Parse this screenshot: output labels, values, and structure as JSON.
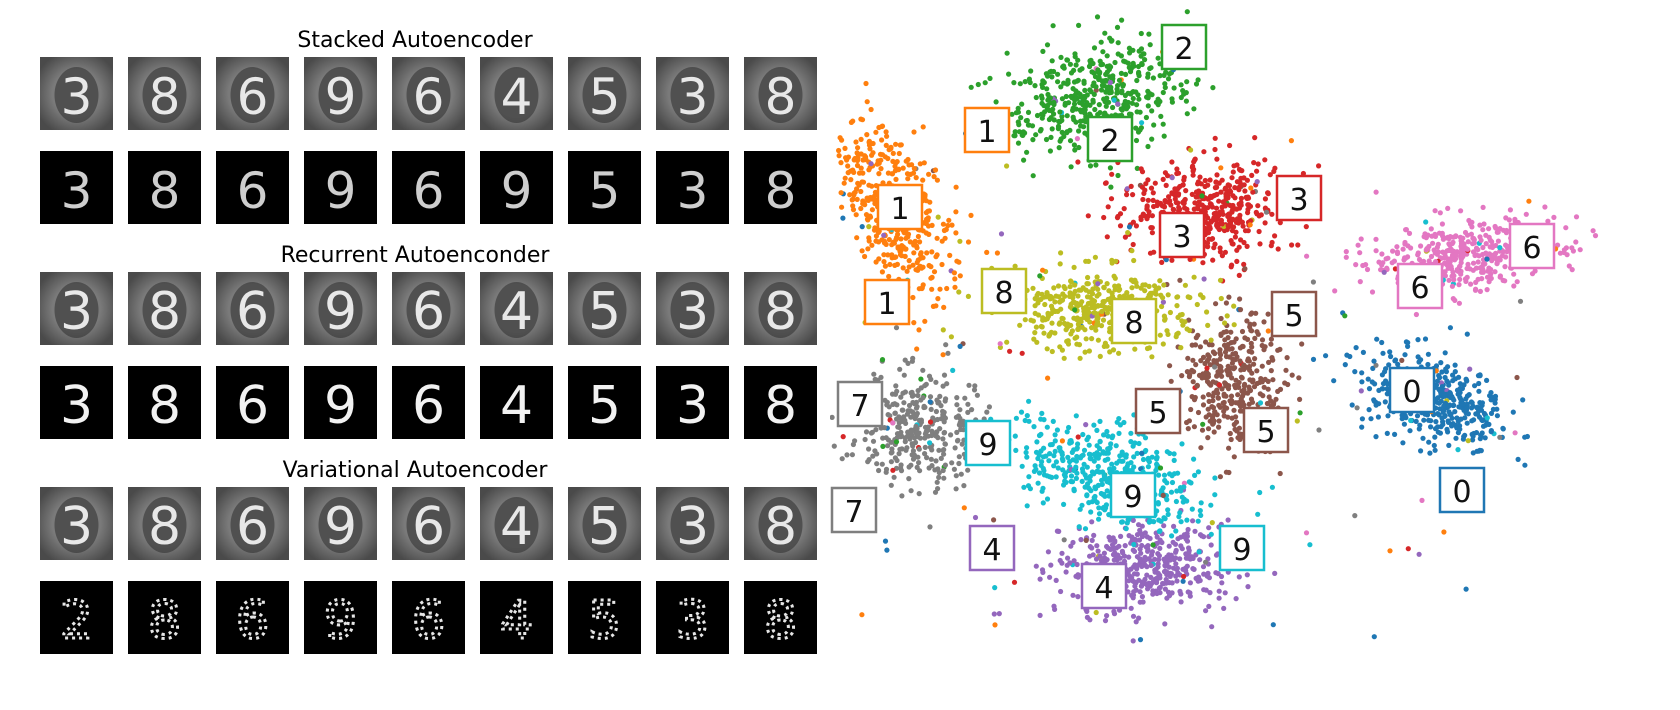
{
  "figure": {
    "panels": [
      {
        "title": "Stacked Autoencoder",
        "style": "noisy"
      },
      {
        "title": "Recurrent Autoenconder",
        "style": "clean"
      },
      {
        "title": "Variational Autoencoder",
        "style": "broken"
      }
    ],
    "sample_digits": [
      "3",
      "8",
      "6",
      "9",
      "6",
      "4",
      "5",
      "3",
      "8"
    ],
    "reconstructions": {
      "Stacked Autoencoder": [
        "3",
        "8",
        "6",
        "9",
        "6",
        "9",
        "5",
        "3",
        "8"
      ],
      "Recurrent Autoenconder": [
        "3",
        "8",
        "6",
        "9",
        "6",
        "4",
        "5",
        "3",
        "8"
      ],
      "Variational Autoencoder": [
        "2",
        "8",
        "6",
        "9",
        "6",
        "4",
        "5",
        "3",
        "8"
      ]
    }
  },
  "chart_data": {
    "type": "scatter",
    "title": "",
    "xlabel": "",
    "ylabel": "",
    "grid": false,
    "legend": "none",
    "series": [
      {
        "digit": "0",
        "color": "#1f77b4",
        "labels": [
          "0",
          "0"
        ]
      },
      {
        "digit": "1",
        "color": "#ff7f0e",
        "labels": [
          "1",
          "1",
          "1"
        ]
      },
      {
        "digit": "2",
        "color": "#2ca02c",
        "labels": [
          "2",
          "2"
        ]
      },
      {
        "digit": "3",
        "color": "#d62728",
        "labels": [
          "3",
          "3"
        ]
      },
      {
        "digit": "4",
        "color": "#9467bd",
        "labels": [
          "4",
          "4"
        ]
      },
      {
        "digit": "5",
        "color": "#8c564b",
        "labels": [
          "5",
          "5",
          "5"
        ]
      },
      {
        "digit": "6",
        "color": "#e377c2",
        "labels": [
          "6",
          "6"
        ]
      },
      {
        "digit": "7",
        "color": "#7f7f7f",
        "labels": [
          "7",
          "7"
        ]
      },
      {
        "digit": "8",
        "color": "#bcbd22",
        "labels": [
          "8",
          "8"
        ]
      },
      {
        "digit": "9",
        "color": "#17becf",
        "labels": [
          "9",
          "9",
          "9"
        ]
      }
    ]
  }
}
